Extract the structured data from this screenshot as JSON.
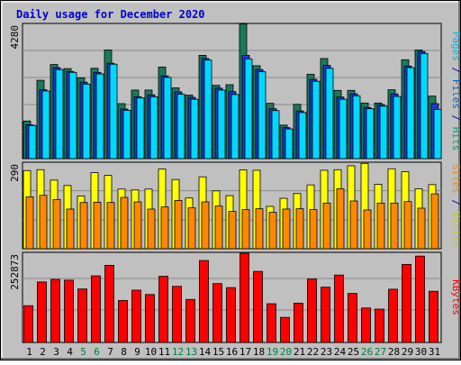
{
  "chart_data": {
    "type": "bar",
    "title": "Daily usage for December 2020",
    "categories": [
      "1",
      "2",
      "3",
      "4",
      "5",
      "6",
      "7",
      "8",
      "9",
      "10",
      "11",
      "12",
      "13",
      "14",
      "15",
      "16",
      "17",
      "18",
      "19",
      "20",
      "21",
      "22",
      "23",
      "24",
      "25",
      "26",
      "27",
      "28",
      "29",
      "30",
      "31"
    ],
    "weekend_days": [
      "5",
      "6",
      "12",
      "13",
      "19",
      "20",
      "26",
      "27"
    ],
    "panels": [
      {
        "id": "top",
        "ymax_label": "4280",
        "ylim": [
          0,
          4280
        ],
        "axis_labels": [
          {
            "text": "Pages",
            "color": "#00b8e6"
          },
          {
            "text": " / ",
            "color": "#0000cc"
          },
          {
            "text": "Files",
            "color": "#0066cc"
          },
          {
            "text": " / ",
            "color": "#0000cc"
          },
          {
            "text": "Hits",
            "color": "#00a080"
          }
        ],
        "series": [
          {
            "name": "Hits",
            "color": "#1a7a5a",
            "values": [
              1190,
              2480,
              2980,
              2850,
              2560,
              2860,
              3440,
              1740,
              2170,
              2170,
              2900,
              2240,
              2010,
              3270,
              2320,
              2340,
              4260,
              2940,
              1750,
              1060,
              1720,
              2670,
              3170,
              2160,
              2160,
              1760,
              1760,
              2180,
              3130,
              3440,
              1980
            ]
          },
          {
            "name": "Files",
            "color": "#1e3ad6",
            "values": [
              1070,
              2180,
              2880,
              2760,
              2420,
              2730,
              3020,
              1570,
              1960,
              2020,
              2620,
              2110,
              1940,
              3170,
              2230,
              2120,
              3270,
              2820,
              1580,
              980,
              1510,
              2510,
              2950,
              1950,
              2050,
              1620,
              1710,
              2050,
              2930,
              3390,
              1740
            ]
          },
          {
            "name": "Pages",
            "color": "#00d8ff",
            "values": [
              1050,
              2140,
              2820,
              2730,
              2360,
              2680,
              2990,
              1530,
              1920,
              1960,
              2570,
              2040,
              1880,
              3120,
              2170,
              2030,
              3160,
              2750,
              1520,
              940,
              1460,
              2450,
              2860,
              1880,
              1990,
              1580,
              1660,
              1970,
              2880,
              3330,
              1560
            ]
          }
        ]
      },
      {
        "id": "middle",
        "ymax_label": "290",
        "ylim": [
          0,
          290
        ],
        "axis_labels": [
          {
            "text": "Sites",
            "color": "#ff8800"
          },
          {
            "text": " / ",
            "color": "#0000cc"
          },
          {
            "text": "Visits",
            "color": "#cccc00"
          }
        ],
        "series": [
          {
            "name": "Visits",
            "color": "#ffff00",
            "values": [
              262,
              265,
              230,
              212,
              177,
              255,
              246,
              200,
              197,
              200,
              267,
              232,
              170,
              241,
              194,
              178,
              264,
              263,
              142,
              169,
              185,
              214,
              263,
              265,
              278,
              286,
              216,
              268,
              258,
              201,
              215
            ]
          },
          {
            "name": "Sites",
            "color": "#ff8800",
            "values": [
              174,
              179,
              165,
              133,
              155,
              156,
              155,
              172,
              157,
              133,
              140,
              162,
              137,
              157,
              143,
              125,
              131,
              134,
              122,
              133,
              134,
              131,
              153,
              201,
              160,
              130,
              153,
              153,
              158,
              136,
              184
            ]
          }
        ]
      },
      {
        "id": "bottom",
        "ymax_label": "252873",
        "ylim": [
          0,
          252873
        ],
        "axis_labels": [
          {
            "text": "KBytes",
            "color": "#ff0000"
          }
        ],
        "series": [
          {
            "name": "KBytes",
            "color": "#ff0000",
            "values": [
              103200,
              169800,
              176900,
              174800,
              150100,
              186900,
              216400,
              117900,
              146800,
              134600,
              185600,
              157500,
              120800,
              230000,
              165200,
              153900,
              250200,
              199500,
              108700,
              70300,
              110400,
              178200,
              155100,
              189200,
              137600,
              96700,
              93500,
              149400,
              219100,
              242400,
              143700
            ]
          }
        ]
      }
    ]
  }
}
